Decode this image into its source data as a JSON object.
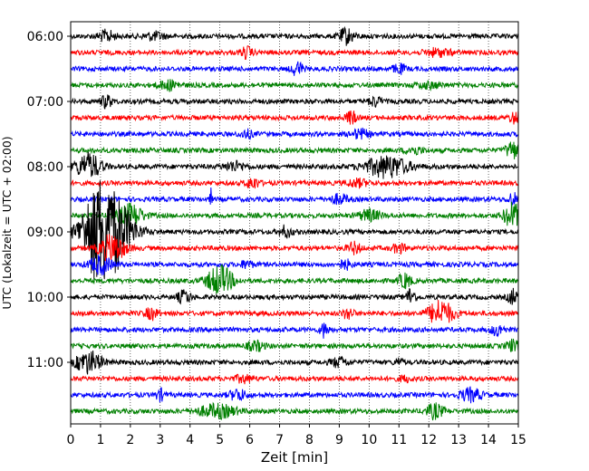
{
  "chart_data": {
    "type": "line",
    "subtype": "seismogram-helicorder",
    "xlabel": "Zeit  [min]",
    "ylabel": "UTC (Lokalzeit = UTC + 02:00)",
    "xlim": [
      0,
      15
    ],
    "x_ticks": [
      "0",
      "1",
      "2",
      "3",
      "4",
      "5",
      "6",
      "7",
      "8",
      "9",
      "10",
      "11",
      "12",
      "13",
      "14",
      "15"
    ],
    "y_ticks": [
      "06:00",
      "07:00",
      "08:00",
      "09:00",
      "10:00",
      "11:00"
    ],
    "grid": "vertical dotted at each minute",
    "trace_colors": [
      "#000000",
      "#ff0000",
      "#0000ff",
      "#008000"
    ],
    "traces": [
      {
        "start": "06:00",
        "color": "#000000"
      },
      {
        "start": "06:15",
        "color": "#ff0000"
      },
      {
        "start": "06:30",
        "color": "#0000ff"
      },
      {
        "start": "06:45",
        "color": "#008000"
      },
      {
        "start": "07:00",
        "color": "#000000"
      },
      {
        "start": "07:15",
        "color": "#ff0000"
      },
      {
        "start": "07:30",
        "color": "#0000ff"
      },
      {
        "start": "07:45",
        "color": "#008000"
      },
      {
        "start": "08:00",
        "color": "#000000"
      },
      {
        "start": "08:15",
        "color": "#ff0000"
      },
      {
        "start": "08:30",
        "color": "#0000ff"
      },
      {
        "start": "08:45",
        "color": "#008000"
      },
      {
        "start": "09:00",
        "color": "#000000"
      },
      {
        "start": "09:15",
        "color": "#ff0000"
      },
      {
        "start": "09:30",
        "color": "#0000ff"
      },
      {
        "start": "09:45",
        "color": "#008000"
      },
      {
        "start": "10:00",
        "color": "#000000"
      },
      {
        "start": "10:15",
        "color": "#ff0000"
      },
      {
        "start": "10:30",
        "color": "#0000ff"
      },
      {
        "start": "10:45",
        "color": "#008000"
      },
      {
        "start": "11:00",
        "color": "#000000"
      },
      {
        "start": "11:15",
        "color": "#ff0000"
      },
      {
        "start": "11:30",
        "color": "#0000ff"
      },
      {
        "start": "11:45",
        "color": "#008000"
      }
    ]
  }
}
